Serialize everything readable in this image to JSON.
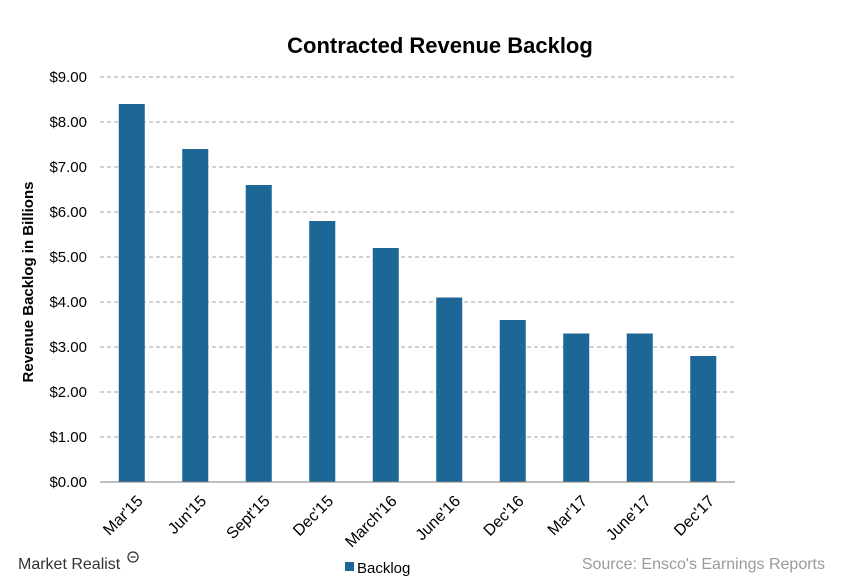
{
  "chart_data": {
    "type": "bar",
    "title": "Contracted Revenue Backlog",
    "ylabel": "Revenue Backlog in Billions",
    "xlabel": "",
    "categories": [
      "Mar'15",
      "Jun'15",
      "Sept'15",
      "Dec'15",
      "March'16",
      "June'16",
      "Dec'16",
      "Mar'17",
      "June'17",
      "Dec'17"
    ],
    "series": [
      {
        "name": "Backlog",
        "values": [
          8.4,
          7.4,
          6.6,
          5.8,
          5.2,
          4.1,
          3.6,
          3.3,
          3.3,
          2.8
        ]
      }
    ],
    "ylim": [
      0,
      9
    ],
    "yticks": [
      "$0.00",
      "$1.00",
      "$2.00",
      "$3.00",
      "$4.00",
      "$5.00",
      "$6.00",
      "$7.00",
      "$8.00",
      "$9.00"
    ],
    "grid": true,
    "legend_position": "bottom"
  },
  "colors": {
    "bar": "#1d6796",
    "grid": "#a6a6a6"
  },
  "branding": {
    "logo_text": "Market Realist",
    "source": "Source:  Ensco's Earnings Reports"
  }
}
